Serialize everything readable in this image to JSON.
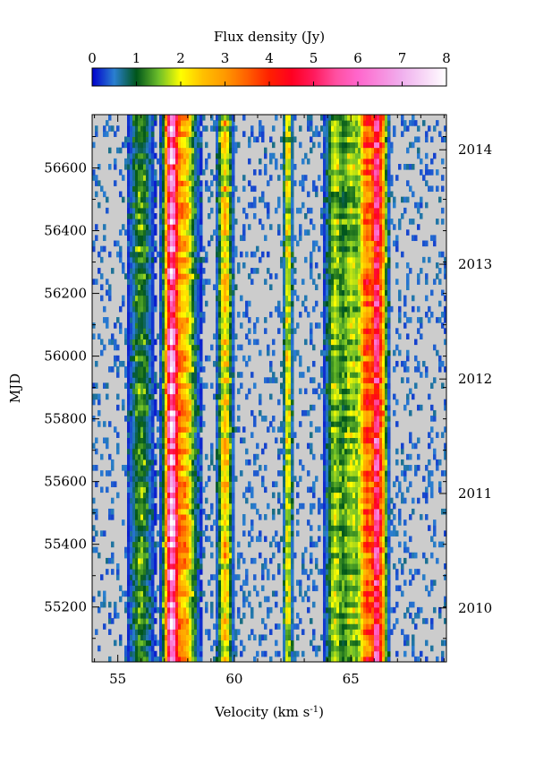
{
  "chart_data": {
    "type": "heatmap",
    "colorbar": {
      "title": "Flux density (Jy)",
      "range": [
        0,
        8
      ],
      "ticks": [
        0,
        1,
        2,
        3,
        4,
        5,
        6,
        7,
        8
      ],
      "colormap": [
        {
          "value": 0,
          "color": "#0000cc"
        },
        {
          "value": 0.5,
          "color": "#2a7fd0"
        },
        {
          "value": 1,
          "color": "#00551a"
        },
        {
          "value": 1.5,
          "color": "#6cbe2a"
        },
        {
          "value": 2,
          "color": "#ffff00"
        },
        {
          "value": 2.5,
          "color": "#ffc000"
        },
        {
          "value": 3,
          "color": "#ff9900"
        },
        {
          "value": 3.5,
          "color": "#ff6000"
        },
        {
          "value": 4,
          "color": "#ff2000"
        },
        {
          "value": 4.5,
          "color": "#ff0020"
        },
        {
          "value": 5,
          "color": "#ff1a5c"
        },
        {
          "value": 5.5,
          "color": "#ff4fa0"
        },
        {
          "value": 6,
          "color": "#ff66cc"
        },
        {
          "value": 7,
          "color": "#f0b0ee"
        },
        {
          "value": 8,
          "color": "#ffffff"
        }
      ]
    },
    "background_color": "#cccccc",
    "xlabel": "Velocity (km s",
    "xlabel_sup": "-1",
    "xlabel_close": ")",
    "ylabel": "MJD",
    "xlim": [
      53.9,
      69.1
    ],
    "ylim": [
      55025,
      56770
    ],
    "xticks": [
      55,
      60,
      65
    ],
    "xminor_step": 1,
    "yticks": [
      55200,
      55400,
      55600,
      55800,
      56000,
      56200,
      56400,
      56600
    ],
    "yminor_step": 100,
    "right_axis": {
      "ticks": [
        {
          "label": "2010",
          "mjd": 55197
        },
        {
          "label": "2011",
          "mjd": 55562
        },
        {
          "label": "2012",
          "mjd": 55927
        },
        {
          "label": "2013",
          "mjd": 56293
        },
        {
          "label": "2014",
          "mjd": 56658
        }
      ]
    },
    "features": [
      {
        "velocity": 56.0,
        "peak_jy": 1.2,
        "width_kms": 0.28
      },
      {
        "velocity": 57.3,
        "peak_jy": 6.0,
        "width_kms": 0.18
      },
      {
        "velocity": 57.85,
        "peak_jy": 2.7,
        "width_kms": 0.3
      },
      {
        "velocity": 59.6,
        "peak_jy": 2.4,
        "width_kms": 0.18
      },
      {
        "velocity": 62.3,
        "peak_jy": 2.0,
        "width_kms": 0.11
      },
      {
        "velocity": 64.3,
        "peak_jy": 1.5,
        "width_kms": 0.22
      },
      {
        "velocity": 65.0,
        "peak_jy": 1.6,
        "width_kms": 0.28
      },
      {
        "velocity": 65.7,
        "peak_jy": 3.5,
        "width_kms": 0.22
      },
      {
        "velocity": 66.1,
        "peak_jy": 4.2,
        "width_kms": 0.12
      },
      {
        "velocity": 66.35,
        "peak_jy": 2.5,
        "width_kms": 0.14
      }
    ]
  }
}
